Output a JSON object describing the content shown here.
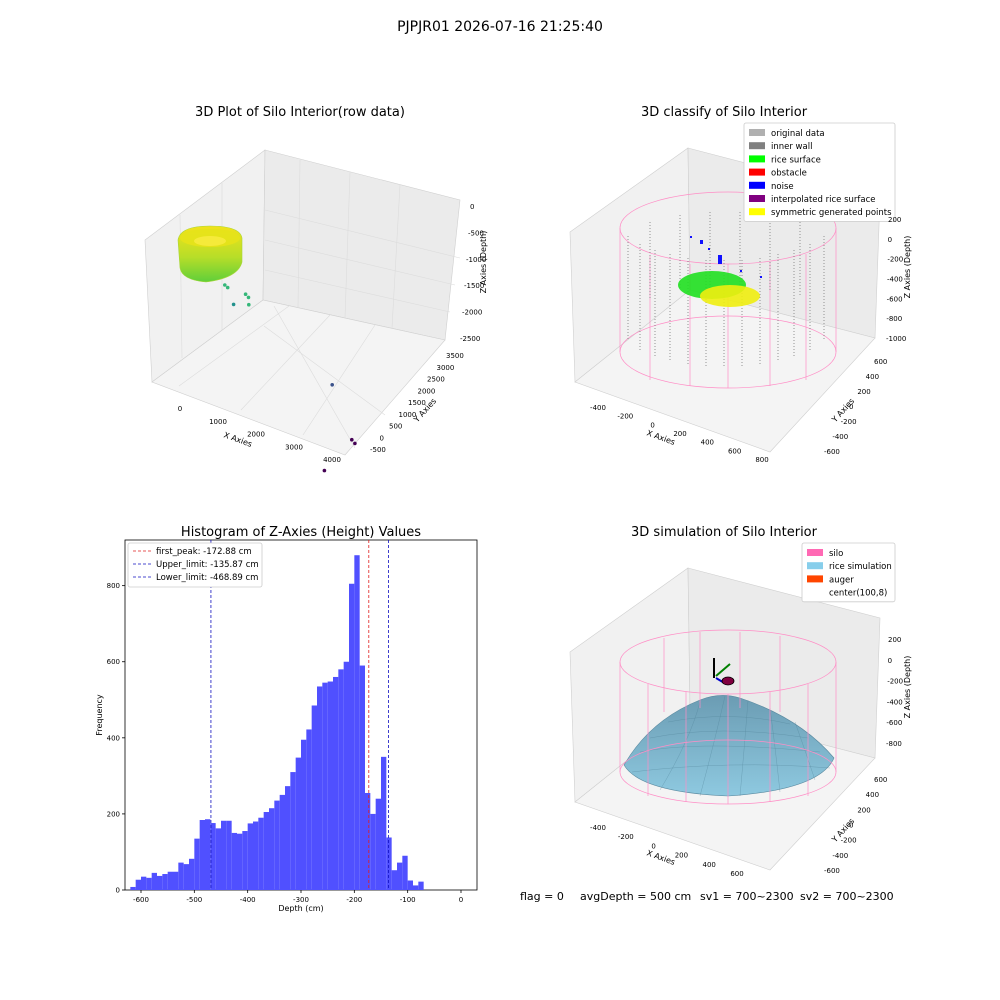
{
  "suptitle": "PJPJR01 2026-07-16 21:25:40",
  "footer": {
    "flag": "flag = 0",
    "avg_depth": "avgDepth = 500 cm",
    "sv1": "sv1 = 700~2300",
    "sv2": "sv2 = 700~2300"
  },
  "colors": {
    "histogram_bar": "#5050ff",
    "first_peak": "#e02020",
    "limits": "#1010c0",
    "pane": "#f2f2f2",
    "grid": "#d6d6d6"
  },
  "chart_data": [
    {
      "type": "scatter3d",
      "title": "3D Plot of Silo Interior(row data)",
      "xlabel": "X Axies",
      "ylabel": "Y Axies",
      "zlabel": "Z Axies (Depth)",
      "x_ticks": [
        "0",
        "1000",
        "2000",
        "3000",
        "4000"
      ],
      "y_ticks": [
        "-500",
        "0",
        "500",
        "1000",
        "1500",
        "2000",
        "2500",
        "3000",
        "3500"
      ],
      "z_ticks": [
        "0",
        "-500",
        "-1000",
        "-1500",
        "-2000",
        "-2500"
      ],
      "colormap": "viridis",
      "outliers": [
        {
          "x": 700,
          "y": 380,
          "z": -450
        },
        {
          "x": 750,
          "y": 400,
          "z": -480
        },
        {
          "x": 1200,
          "y": 300,
          "z": -380
        },
        {
          "x": 1250,
          "y": 320,
          "z": -420
        },
        {
          "x": 1300,
          "y": 250,
          "z": -500
        },
        {
          "x": 1000,
          "y": 200,
          "z": -600
        },
        {
          "x": 2900,
          "y": 600,
          "z": -1300
        },
        {
          "x": 3600,
          "y": 150,
          "z": -1800
        },
        {
          "x": 3650,
          "y": 180,
          "z": -1850
        },
        {
          "x": 3400,
          "y": -500,
          "z": -2200
        }
      ]
    },
    {
      "type": "scatter3d",
      "title": "3D classify of Silo Interior",
      "xlabel": "X Axies",
      "ylabel": "Y Axies",
      "zlabel": "Z Axies (Depth)",
      "x_ticks": [
        "-400",
        "-200",
        "0",
        "200",
        "400",
        "600",
        "800"
      ],
      "y_ticks": [
        "-600",
        "-400",
        "-200",
        "0",
        "200",
        "400",
        "600"
      ],
      "z_ticks": [
        "200",
        "0",
        "-200",
        "-400",
        "-600",
        "-800",
        "-1000"
      ],
      "legend": [
        {
          "label": "original data",
          "color": "#b0b0b0"
        },
        {
          "label": "inner wall",
          "color": "#808080"
        },
        {
          "label": "rice surface",
          "color": "#00ff00"
        },
        {
          "label": "obstacle",
          "color": "#ff0000"
        },
        {
          "label": "noise",
          "color": "#0000ff"
        },
        {
          "label": "interpolated rice surface",
          "color": "#800080"
        },
        {
          "label": "symmetric generated points",
          "color": "#ffff00"
        }
      ]
    },
    {
      "type": "bar",
      "title": "Histogram of Z-Axies (Height) Values",
      "xlabel": "Depth (cm)",
      "ylabel": "Frequency",
      "xlim": [
        -630,
        30
      ],
      "ylim": [
        0,
        920
      ],
      "x_ticks": [
        -600,
        -500,
        -400,
        -300,
        -200,
        -100,
        0
      ],
      "y_ticks": [
        0,
        200,
        400,
        600,
        800
      ],
      "bin_start": -620,
      "bin_width": 10,
      "values": [
        8,
        27,
        35,
        32,
        45,
        37,
        42,
        48,
        48,
        72,
        68,
        82,
        135,
        184,
        186,
        176,
        162,
        182,
        182,
        150,
        148,
        155,
        175,
        180,
        190,
        205,
        215,
        235,
        250,
        273,
        310,
        348,
        395,
        422,
        485,
        535,
        545,
        548,
        560,
        580,
        600
      ],
      "vlines": [
        {
          "label": "first_peak: -172.88 cm",
          "x": -172.88,
          "color": "#e02020"
        },
        {
          "label": "Upper_limit: -135.87 cm",
          "x": -135.87,
          "color": "#1010c0"
        },
        {
          "label": "Lower_limit: -468.89 cm",
          "x": -468.89,
          "color": "#1010c0"
        }
      ]
    },
    {
      "type": "surface3d",
      "title": "3D simulation of Silo Interior",
      "xlabel": "X Axies",
      "ylabel": "Y Axies",
      "zlabel": "Z Axies (Depth)",
      "x_ticks": [
        "-400",
        "-200",
        "0",
        "200",
        "400",
        "600"
      ],
      "y_ticks": [
        "-600",
        "-400",
        "-200",
        "0",
        "200",
        "400",
        "600"
      ],
      "z_ticks": [
        "200",
        "0",
        "-200",
        "-400",
        "-600",
        "-800"
      ],
      "legend": [
        {
          "label": "silo",
          "color": "#ff69b4"
        },
        {
          "label": "rice simulation",
          "color": "#87ceeb"
        },
        {
          "label": "auger",
          "color": "#ff4500"
        },
        {
          "label": "center(100,8)",
          "color": ""
        }
      ]
    }
  ]
}
